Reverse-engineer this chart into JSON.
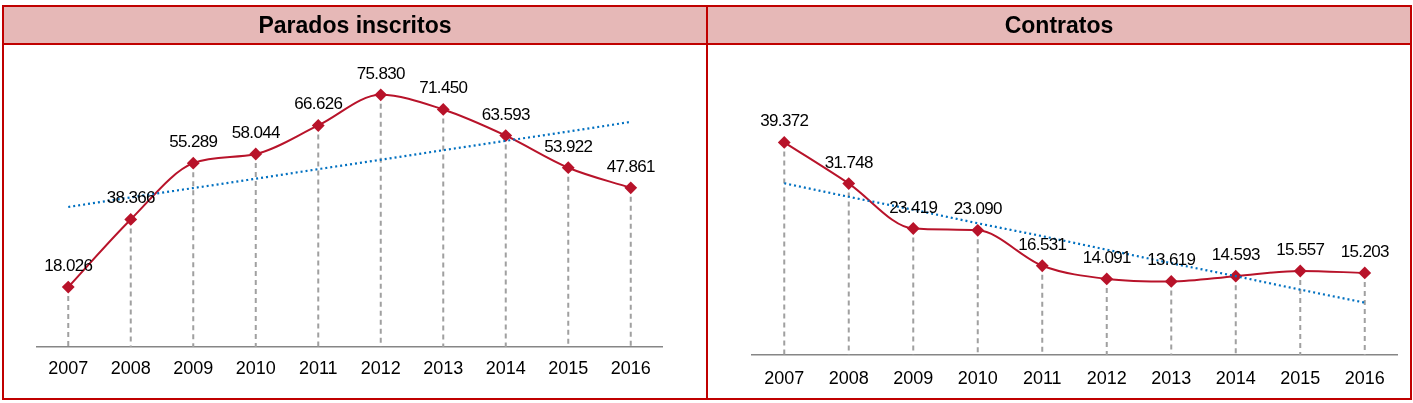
{
  "chart_data": [
    {
      "type": "line",
      "title": "Parados inscritos",
      "categories": [
        "2007",
        "2008",
        "2009",
        "2010",
        "2011",
        "2012",
        "2013",
        "2014",
        "2015",
        "2016"
      ],
      "series": [
        {
          "color": "#b8132a",
          "values": [
            18026,
            38366,
            55289,
            58044,
            66626,
            75830,
            71450,
            63593,
            53922,
            47861
          ],
          "value_labels": [
            "18.026",
            "38.366",
            "55.289",
            "58.044",
            "66.626",
            "75.830",
            "71.450",
            "63.593",
            "53.922",
            "47.861"
          ]
        },
        {
          "type": "line",
          "values": [
            42100,
            45000,
            47800,
            50600,
            53500,
            56300,
            59200,
            62000,
            64800,
            67700
          ],
          "color": "#0070c0",
          "line_style": "dotted",
          "marker": "none"
        }
      ],
      "marker": "diamond",
      "line_style": "solid",
      "grid": "x",
      "legend": false,
      "tick_labels": "x"
    },
    {
      "type": "line",
      "title": "Contratos",
      "categories": [
        "2007",
        "2008",
        "2009",
        "2010",
        "2011",
        "2012",
        "2013",
        "2014",
        "2015",
        "2016"
      ],
      "series": [
        {
          "color": "#b8132a",
          "values": [
            39372,
            31748,
            23419,
            23090,
            16531,
            14091,
            13619,
            14593,
            15557,
            15203
          ],
          "value_labels": [
            "39.372",
            "31.748",
            "23.419",
            "23.090",
            "16.531",
            "14.091",
            "13.619",
            "14.593",
            "15.557",
            "15.203"
          ]
        },
        {
          "type": "line",
          "values": [
            31800,
            29300,
            26900,
            24400,
            22000,
            19500,
            17000,
            14600,
            12100,
            9700
          ],
          "color": "#0070c0",
          "line_style": "dotted",
          "marker": "none"
        }
      ],
      "marker": "diamond",
      "line_style": "solid",
      "grid": "x",
      "legend": false,
      "tick_labels": "x"
    }
  ]
}
